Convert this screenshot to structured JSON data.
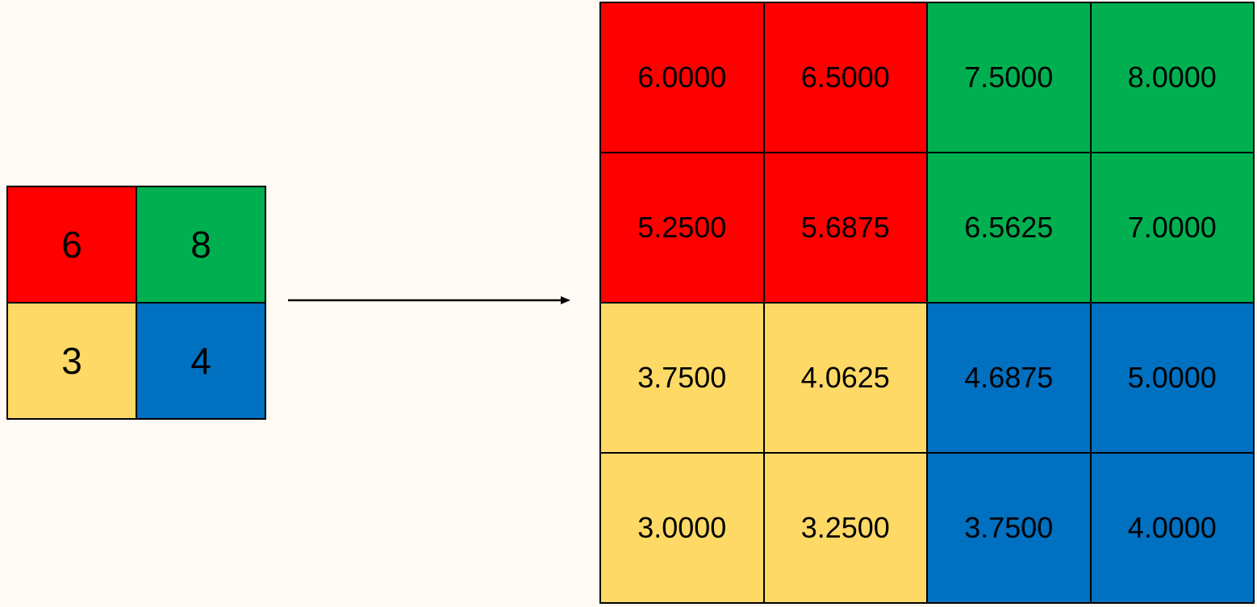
{
  "colors": {
    "background": "#FFFAF3",
    "red": "#FF0000",
    "green": "#00B050",
    "yellow": "#FFD966",
    "blue": "#0070C0",
    "line": "#000000"
  },
  "input_grid": {
    "cells": [
      {
        "value": "6",
        "color": "red"
      },
      {
        "value": "8",
        "color": "green"
      },
      {
        "value": "3",
        "color": "yellow"
      },
      {
        "value": "4",
        "color": "blue"
      }
    ]
  },
  "output_grid": {
    "cells": [
      {
        "value": "6.0000",
        "color": "red"
      },
      {
        "value": "6.5000",
        "color": "red"
      },
      {
        "value": "7.5000",
        "color": "green"
      },
      {
        "value": "8.0000",
        "color": "green"
      },
      {
        "value": "5.2500",
        "color": "red"
      },
      {
        "value": "5.6875",
        "color": "red"
      },
      {
        "value": "6.5625",
        "color": "green"
      },
      {
        "value": "7.0000",
        "color": "green"
      },
      {
        "value": "3.7500",
        "color": "yellow"
      },
      {
        "value": "4.0625",
        "color": "yellow"
      },
      {
        "value": "4.6875",
        "color": "blue"
      },
      {
        "value": "5.0000",
        "color": "blue"
      },
      {
        "value": "3.0000",
        "color": "yellow"
      },
      {
        "value": "3.2500",
        "color": "yellow"
      },
      {
        "value": "3.7500",
        "color": "blue"
      },
      {
        "value": "4.0000",
        "color": "blue"
      }
    ]
  }
}
